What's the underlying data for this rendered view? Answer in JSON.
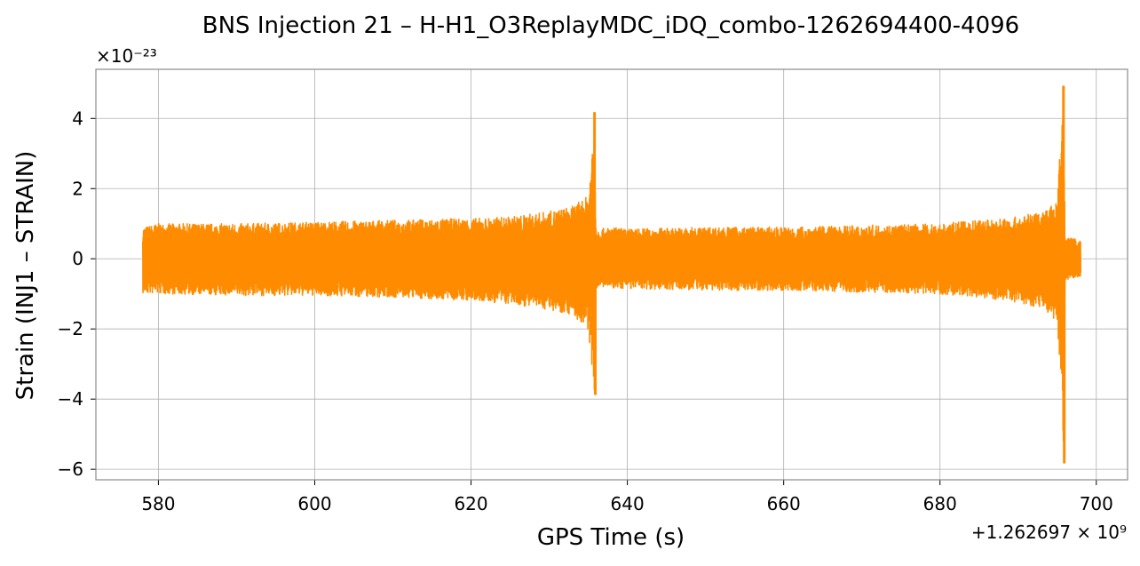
{
  "chart_data": {
    "type": "line",
    "title": "BNS Injection 21 – H-H1_O3ReplayMDC_iDQ_combo-1262694400-4096",
    "xlabel": "GPS Time (s)",
    "ylabel": "Strain (INJ1 – STRAIN)",
    "y_scale_label": "×10⁻²³",
    "x_offset_label": "+1.262697 × 10⁹",
    "xlim": [
      572,
      704
    ],
    "ylim": [
      -6.3,
      5.4
    ],
    "xticks": [
      580,
      600,
      620,
      640,
      660,
      680,
      700
    ],
    "yticks": [
      -6,
      -4,
      -2,
      0,
      2,
      4
    ],
    "grid": true,
    "line_color": "#ff8c00",
    "series": [
      {
        "x_start": 578,
        "x_end": 698,
        "envelope": {
          "x": [
            578,
            580,
            590,
            600,
            610,
            620,
            625,
            630,
            633,
            635,
            635.8,
            636,
            636.3,
            638,
            640,
            650,
            660,
            670,
            680,
            685,
            690,
            693,
            695,
            695.8,
            696,
            696.2,
            697,
            698
          ],
          "upper": [
            0.9,
            1.0,
            1.0,
            1.05,
            1.1,
            1.15,
            1.2,
            1.35,
            1.5,
            1.8,
            4.15,
            0.9,
            0.85,
            0.9,
            0.85,
            0.9,
            0.9,
            0.95,
            1.0,
            1.1,
            1.2,
            1.35,
            1.6,
            4.9,
            0.7,
            0.6,
            0.6,
            0.5
          ],
          "lower": [
            -1.0,
            -1.0,
            -1.05,
            -1.05,
            -1.1,
            -1.2,
            -1.3,
            -1.45,
            -1.6,
            -2.1,
            -3.85,
            -0.85,
            -0.8,
            -0.85,
            -0.85,
            -0.9,
            -0.9,
            -0.95,
            -1.0,
            -1.1,
            -1.25,
            -1.4,
            -1.8,
            -5.8,
            -0.6,
            -0.6,
            -0.55,
            -0.5
          ]
        }
      }
    ]
  }
}
